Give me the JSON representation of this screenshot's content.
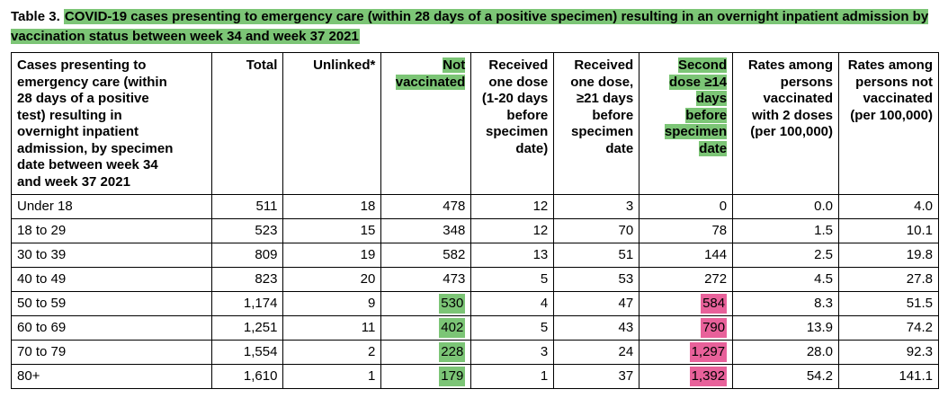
{
  "caption": {
    "label": "Table 3.",
    "text": "COVID-19 cases presenting to emergency care (within 28 days of a positive specimen) resulting in an overnight inpatient admission by vaccination status between week 34 and week 37 2021"
  },
  "columns": [
    "Cases presenting to\nemergency care (within\n28 days of a positive\ntest) resulting in\novernight inpatient\nadmission, by specimen\ndate between week 34\nand week 37 2021",
    "Total",
    "Unlinked*",
    "Not\nvaccinated",
    "Received\none dose\n(1-20 days\nbefore\nspecimen\ndate)",
    "Received\none dose,\n≥21 days\nbefore\nspecimen\ndate",
    "Second\ndose ≥14\ndays\nbefore\nspecimen\ndate",
    "Rates among\npersons\nvaccinated\nwith 2 doses\n(per 100,000)",
    "Rates among\npersons not\nvaccinated\n(per 100,000)"
  ],
  "rows": [
    [
      "Under 18",
      "511",
      "18",
      "478",
      "12",
      "3",
      "0",
      "0.0",
      "4.0"
    ],
    [
      "18 to 29",
      "523",
      "15",
      "348",
      "12",
      "70",
      "78",
      "1.5",
      "10.1"
    ],
    [
      "30 to 39",
      "809",
      "19",
      "582",
      "13",
      "51",
      "144",
      "2.5",
      "19.8"
    ],
    [
      "40 to 49",
      "823",
      "20",
      "473",
      "5",
      "53",
      "272",
      "4.5",
      "27.8"
    ],
    [
      "50 to 59",
      "1,174",
      "9",
      "530",
      "4",
      "47",
      "584",
      "8.3",
      "51.5"
    ],
    [
      "60 to 69",
      "1,251",
      "11",
      "402",
      "5",
      "43",
      "790",
      "13.9",
      "74.2"
    ],
    [
      "70 to 79",
      "1,554",
      "2",
      "228",
      "3",
      "24",
      "1,297",
      "28.0",
      "92.3"
    ],
    [
      "80+",
      "1,610",
      "1",
      "179",
      "1",
      "37",
      "1,392",
      "54.2",
      "141.1"
    ]
  ],
  "colors": {
    "highlight_green": "#7cc576",
    "highlight_pink": "#e8619a"
  }
}
